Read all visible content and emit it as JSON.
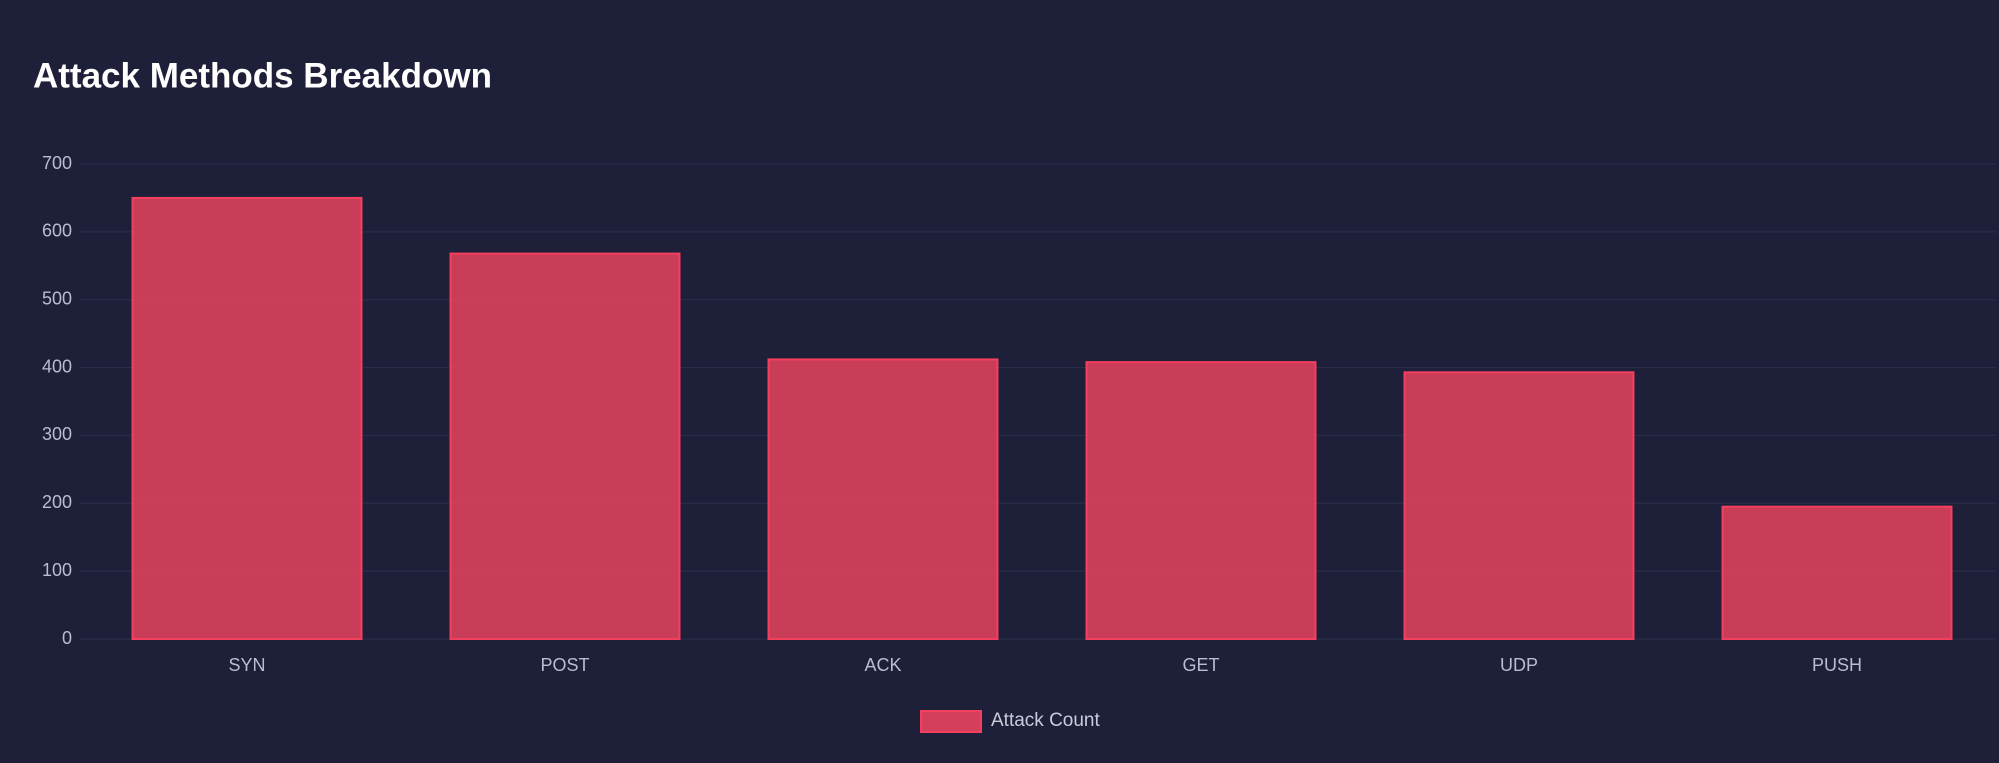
{
  "chart_data": {
    "type": "bar",
    "title": "Attack Methods Breakdown",
    "categories": [
      "SYN",
      "POST",
      "ACK",
      "GET",
      "UDP",
      "PUSH"
    ],
    "series": [
      {
        "name": "Attack Count",
        "color": "#d43f5b",
        "values": [
          650,
          568,
          412,
          408,
          393,
          195
        ]
      }
    ],
    "ylim": [
      0,
      700
    ],
    "yticks": [
      0,
      100,
      200,
      300,
      400,
      500,
      600,
      700
    ],
    "grid": true,
    "legend": "bottom"
  }
}
